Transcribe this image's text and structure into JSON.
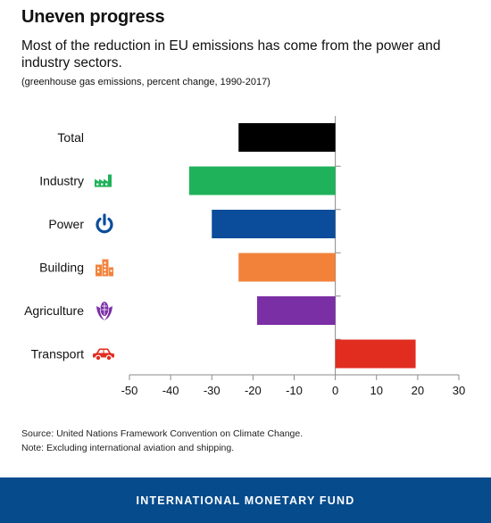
{
  "header": {
    "title": "Uneven progress",
    "subtitle": "Most of the reduction in EU emissions has come from the power and industry sectors.",
    "note": "(greenhouse gas emissions, percent change, 1990-2017)"
  },
  "chart_data": {
    "type": "bar",
    "orientation": "horizontal",
    "title": "Uneven progress",
    "subtitle": "Most of the reduction in EU emissions has come from the power and industry sectors.",
    "xlabel": "",
    "ylabel": "",
    "categories": [
      "Total",
      "Industry",
      "Power",
      "Building",
      "Agriculture",
      "Transport"
    ],
    "values": [
      -23.5,
      -35.5,
      -30,
      -23.5,
      -19,
      19.5
    ],
    "icons": [
      "",
      "factory-icon",
      "power-icon",
      "building-icon",
      "corn-icon",
      "car-icon"
    ],
    "colors": [
      "#000000",
      "#1fb25a",
      "#0b4d9b",
      "#f2823a",
      "#7b2fa5",
      "#e02d20"
    ],
    "xlim": [
      -50,
      30
    ],
    "xticks": [
      -50,
      -40,
      -30,
      -20,
      -10,
      0,
      10,
      20,
      30
    ],
    "grid": false,
    "legend": "none"
  },
  "footer": {
    "source": "Source: United Nations Framework Convention on Climate Change.",
    "note": "Note: Excluding international aviation and shipping.",
    "organization": "INTERNATIONAL MONETARY FUND"
  }
}
